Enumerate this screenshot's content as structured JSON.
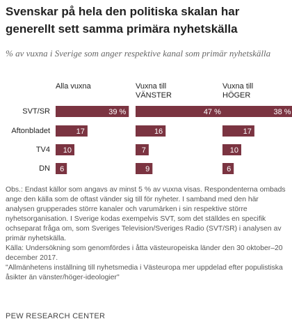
{
  "chart_data": {
    "type": "bar",
    "title": "Svenskar på hela den politiska skalan har generellt sett samma primära nyhetskälla",
    "subtitle": "% av vuxna i Sverige som anger respektive kanal som primär nyhetskälla",
    "categories": [
      "SVT/SR",
      "Aftonbladet",
      "TV4",
      "DN"
    ],
    "series": [
      {
        "name": "Alla vuxna",
        "color": "#7b3441",
        "values": [
          39,
          17,
          10,
          6
        ],
        "value_labels": [
          "39 %",
          "17",
          "10",
          "6"
        ]
      },
      {
        "name": "Vuxna till VÄNSTER",
        "color": "#7b3441",
        "values": [
          47,
          16,
          7,
          9
        ],
        "value_labels": [
          "47 %",
          "16",
          "7",
          "9"
        ]
      },
      {
        "name": "Vuxna till HÖGER",
        "color": "#7b3441",
        "values": [
          38,
          17,
          10,
          6
        ],
        "value_labels": [
          "38 %",
          "17",
          "10",
          "6"
        ]
      }
    ],
    "notes": [
      "Obs.: Endast källor som angavs av minst 5 % av vuxna visas. Respondenterna ombads ange den källa som de oftast vänder sig till för nyheter. I samband med den här analysen grupperades större kanaler och varumärken i sin respektive större nyhetsorganisation. I Sverige kodas exempelvis SVT, som det ställdes en specifik ochseparat fråga om, som Sveriges Television/Sveriges Radio (SVT/SR) i analysen av primär nyhetskälla.",
      "Källa: Undersökning som genomfördes i åtta västeuropeiska länder den 30 oktober–20 december 2017.",
      "\"Allmänhetens inställning till nyhetsmedia i Västeuropa mer uppdelad efter populistiska åsikter än vänster/höger-ideologier\""
    ],
    "source": "PEW RESEARCH CENTER"
  }
}
